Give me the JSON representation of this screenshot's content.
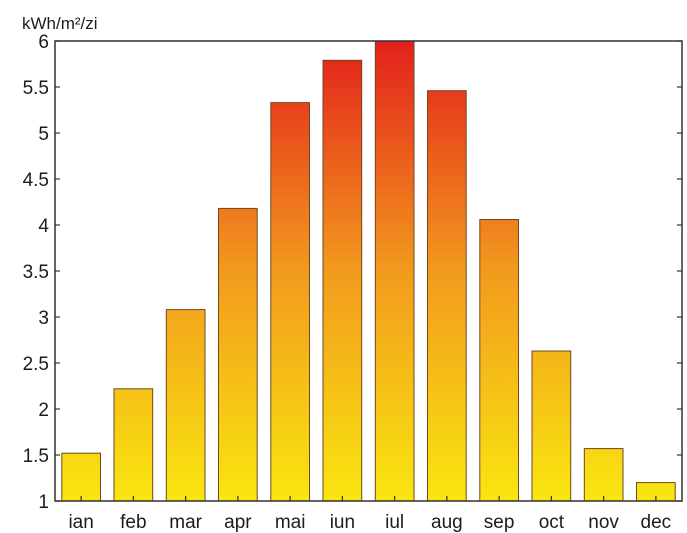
{
  "chart_data": {
    "type": "bar",
    "title": "",
    "xlabel": "",
    "ylabel": "kWh/m²/zi",
    "categories": [
      "ian",
      "feb",
      "mar",
      "apr",
      "mai",
      "iun",
      "iul",
      "aug",
      "sep",
      "oct",
      "nov",
      "dec"
    ],
    "values": [
      1.52,
      2.22,
      3.08,
      4.18,
      5.33,
      5.79,
      6.0,
      5.46,
      4.06,
      2.63,
      1.57,
      1.2
    ],
    "ylim": [
      1,
      6
    ],
    "yticks": [
      "1",
      "1.5",
      "2",
      "2.5",
      "3",
      "3.5",
      "4",
      "4.5",
      "5",
      "5.5",
      "6"
    ],
    "grid": false,
    "legend": "none",
    "colors": {
      "gradient_low": "#f9e610",
      "gradient_mid": "#f29a1e",
      "gradient_high": "#e3201b",
      "bar_edge": "#6d4a1f",
      "axis": "#303030"
    }
  }
}
